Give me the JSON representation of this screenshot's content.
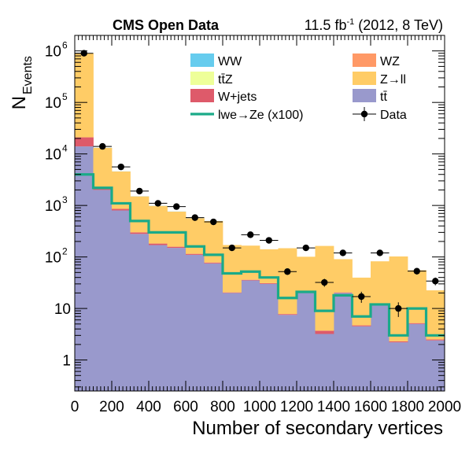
{
  "header": {
    "left": "CMS Open Data",
    "lumi_value": "11.5 fb",
    "lumi_exp": "-1",
    "lumi_rest": " (2012, 8 TeV)"
  },
  "chart_data": {
    "type": "bar",
    "stacked": true,
    "log_y": true,
    "xlabel": "Number of secondary vertices",
    "ylabel_main": "N",
    "ylabel_sub": "Events",
    "xlim": [
      0,
      2000
    ],
    "ylim": [
      0.25,
      2000000
    ],
    "x_tick_labels": [
      "0",
      "200",
      "400",
      "600",
      "800",
      "1000",
      "1200",
      "1400",
      "1600",
      "1800",
      "2000"
    ],
    "y_tick_labels": [
      {
        "value": 1,
        "base": "1",
        "exp": ""
      },
      {
        "value": 10,
        "base": "10",
        "exp": ""
      },
      {
        "value": 100,
        "base": "10",
        "exp": "2"
      },
      {
        "value": 1000,
        "base": "10",
        "exp": "3"
      },
      {
        "value": 10000,
        "base": "10",
        "exp": "4"
      },
      {
        "value": 100000,
        "base": "10",
        "exp": "5"
      },
      {
        "value": 1000000,
        "base": "10",
        "exp": "6"
      }
    ],
    "bin_edges": [
      0,
      100,
      200,
      300,
      400,
      500,
      600,
      700,
      800,
      900,
      1000,
      1100,
      1200,
      1300,
      1400,
      1500,
      1600,
      1700,
      1800,
      1900,
      2000
    ],
    "stack": [
      {
        "name": "tt̄",
        "color": "#9999cc",
        "values": [
          14000,
          2000,
          800,
          280,
          170,
          150,
          110,
          75,
          20,
          35,
          30,
          7.5,
          20,
          3.2,
          20,
          4.5,
          12,
          2.2,
          5,
          2.4
        ]
      },
      {
        "name": "W+jets",
        "color": "#de5a6a",
        "values": [
          7000,
          150,
          60,
          20,
          12,
          8,
          5,
          3,
          0.5,
          1,
          1,
          0.3,
          1,
          0.5,
          0.5,
          0.2,
          0.3,
          0.1,
          0.2,
          0.1
        ]
      },
      {
        "name": "Z→ll",
        "color": "#ffcc66",
        "values": [
          880000,
          11000,
          3700,
          1200,
          800,
          600,
          450,
          420,
          150,
          130,
          110,
          140,
          80,
          160,
          70,
          35,
          70,
          100,
          50,
          20
        ]
      },
      {
        "name": "tt̄Z",
        "color": "#eeff99",
        "values": [
          10,
          1,
          0.5,
          0.2,
          0.1,
          0.1,
          0.1,
          0.1,
          0,
          0,
          0,
          0,
          0,
          0,
          0,
          0,
          0,
          0,
          0,
          0
        ]
      },
      {
        "name": "WZ",
        "color": "#ff9966",
        "values": [
          100,
          10,
          5,
          2,
          1,
          1,
          1,
          0.5,
          0,
          0,
          0,
          0,
          0,
          0,
          0,
          0,
          0,
          0,
          0,
          0
        ]
      },
      {
        "name": "WW",
        "color": "#66ccee",
        "values": [
          500,
          50,
          20,
          8,
          5,
          4,
          3,
          2,
          0,
          0,
          0,
          0,
          0,
          0,
          0,
          0,
          0,
          0,
          0,
          0
        ]
      }
    ],
    "signal": {
      "name": "lwe→Ze (x100)",
      "color": "#1aaa88",
      "values": [
        4000,
        2200,
        1100,
        500,
        300,
        300,
        160,
        110,
        48,
        52,
        40,
        16,
        21,
        9,
        18,
        7,
        12,
        3,
        10,
        3
      ]
    },
    "data": {
      "name": "Data",
      "x": [
        50,
        150,
        250,
        350,
        450,
        550,
        650,
        750,
        850,
        950,
        1050,
        1150,
        1250,
        1350,
        1450,
        1550,
        1650,
        1750,
        1850,
        1950
      ],
      "y": [
        900000,
        14000,
        5600,
        1900,
        1100,
        950,
        580,
        480,
        150,
        270,
        210,
        52,
        150,
        32,
        120,
        17,
        120,
        10,
        53,
        34
      ]
    },
    "legend": {
      "placement": "top-right",
      "entries": [
        {
          "label": "WW",
          "kind": "box",
          "color": "#66ccee"
        },
        {
          "label": "WZ",
          "kind": "box",
          "color": "#ff9966"
        },
        {
          "label": "tt̄Z",
          "kind": "box",
          "color": "#eeff99"
        },
        {
          "label": "Z→ll",
          "kind": "box",
          "color": "#ffcc66"
        },
        {
          "label": "W+jets",
          "kind": "box",
          "color": "#de5a6a"
        },
        {
          "label": "tt̄",
          "kind": "box",
          "color": "#9999cc"
        },
        {
          "label": "lwe→Ze (x100)",
          "kind": "line",
          "color": "#1aaa88"
        },
        {
          "label": "Data",
          "kind": "marker",
          "color": "#000000"
        }
      ]
    }
  }
}
